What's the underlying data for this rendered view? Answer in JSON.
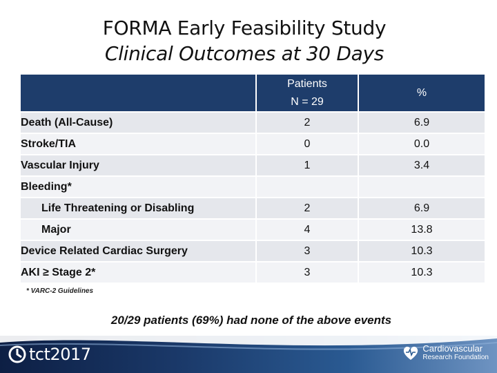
{
  "title": {
    "main": "FORMA Early Feasibility Study",
    "sub": "Clinical Outcomes at 30 Days"
  },
  "table": {
    "header": {
      "label": "",
      "patients_line1": "Patients",
      "patients_line2": "N = 29",
      "percent": "%"
    },
    "rows": [
      {
        "label": "Death (All-Cause)",
        "n": "2",
        "pct": "6.9"
      },
      {
        "label": "Stroke/TIA",
        "n": "0",
        "pct": "0.0"
      },
      {
        "label": "Vascular Injury",
        "n": "1",
        "pct": "3.4"
      },
      {
        "label": "Bleeding*",
        "n": "",
        "pct": ""
      },
      {
        "label": "Life Threatening or Disabling",
        "n": "2",
        "pct": "6.9"
      },
      {
        "label": "Major",
        "n": "4",
        "pct": "13.8"
      },
      {
        "label": "Device Related Cardiac Surgery",
        "n": "3",
        "pct": "10.3"
      },
      {
        "label": "AKI ≥ Stage 2*",
        "n": "3",
        "pct": "10.3"
      }
    ]
  },
  "footnote": "* VARC-2 Guidelines",
  "summary": "20/29 patients (69%) had none of the above events",
  "footer": {
    "tct_logo_text": "tct2017",
    "crf_line1": "Cardiovascular",
    "crf_line2": "Research Foundation"
  },
  "colors": {
    "header_bg": "#1e3d6b",
    "row_odd": "#e5e7ec",
    "row_even": "#f2f3f6"
  }
}
